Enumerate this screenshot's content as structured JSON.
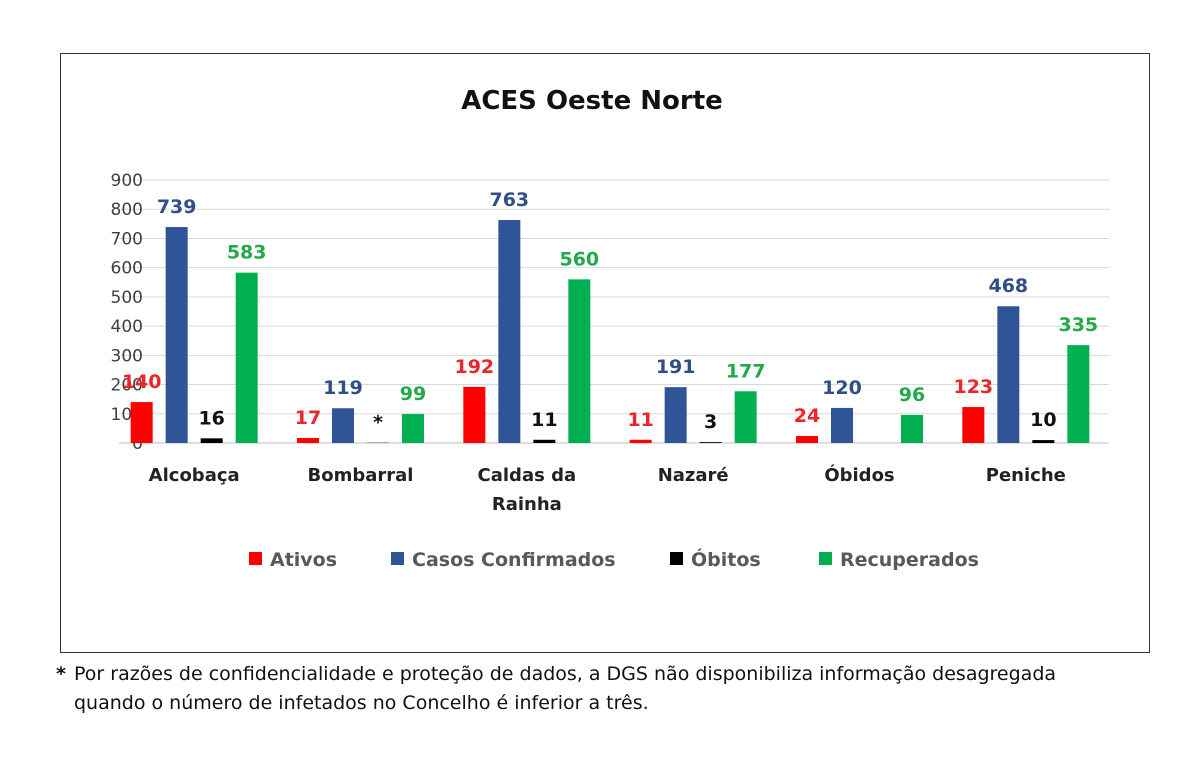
{
  "chart_data": {
    "type": "bar",
    "title": "ACES Oeste Norte",
    "xlabel": "",
    "ylabel": "",
    "ylim": [
      0,
      900
    ],
    "yticks": [
      0,
      100,
      200,
      300,
      400,
      500,
      600,
      700,
      800,
      900
    ],
    "grid": true,
    "legend": "bottom",
    "categories": [
      [
        "Alcobaça"
      ],
      [
        "Bombarral"
      ],
      [
        "Caldas da",
        "Rainha"
      ],
      [
        "Nazaré"
      ],
      [
        "Óbidos"
      ],
      [
        "Peniche"
      ]
    ],
    "series": [
      {
        "name": "Ativos",
        "color": "#ff0000",
        "label_color": "#e8262c",
        "values": [
          140,
          17,
          192,
          11,
          24,
          123
        ],
        "labels": [
          "140",
          "17",
          "192",
          "11",
          "24",
          "123"
        ]
      },
      {
        "name": "Casos Confirmados",
        "color": "#2f5597",
        "label_color": "#2f4f85",
        "values": [
          739,
          119,
          763,
          191,
          120,
          468
        ],
        "labels": [
          "739",
          "119",
          "763",
          "191",
          "120",
          "468"
        ]
      },
      {
        "name": "Óbitos",
        "color": "#000000",
        "label_color": "#111111",
        "values": [
          16,
          1,
          11,
          3,
          0,
          10
        ],
        "labels": [
          "16",
          "*",
          "11",
          "3",
          "",
          "10"
        ]
      },
      {
        "name": "Recuperados",
        "color": "#00b050",
        "label_color": "#23a94a",
        "values": [
          583,
          99,
          560,
          177,
          96,
          335
        ],
        "labels": [
          "583",
          "99",
          "560",
          "177",
          "96",
          "335"
        ]
      }
    ]
  },
  "footnote": {
    "marker": "*",
    "line1": "Por razões de confidencialidade e proteção de dados, a DGS não disponibiliza informação desagregada",
    "line2": "quando o número de infetados no Concelho é inferior a três."
  }
}
